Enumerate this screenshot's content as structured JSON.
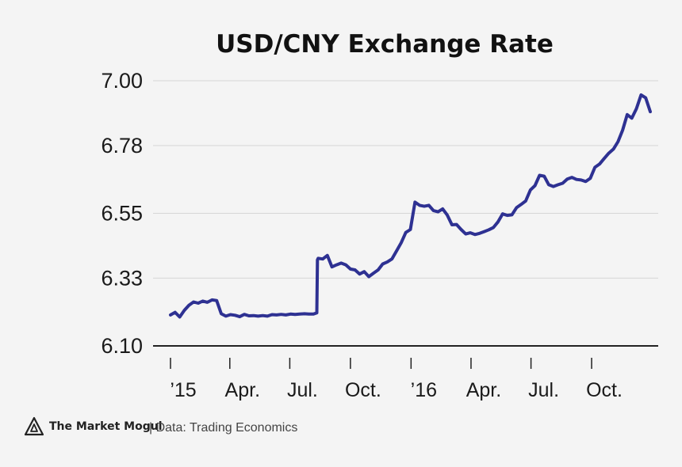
{
  "chart_data": {
    "type": "line",
    "title": "USD/CNY Exchange Rate",
    "xlabel": "",
    "ylabel": "",
    "ylim": [
      6.1,
      7.0
    ],
    "y_ticks": [
      "6.10",
      "6.33",
      "6.55",
      "6.78",
      "7.00"
    ],
    "x_ticks": [
      "’15",
      "Apr.",
      "Jul.",
      "Oct.",
      "’16",
      "Apr.",
      "Jul.",
      "Oct."
    ],
    "grid": "horizontal",
    "line_color": "#2e3192",
    "series": [
      {
        "name": "",
        "x": [
          "2015-01-01",
          "2015-01-08",
          "2015-01-15",
          "2015-01-22",
          "2015-01-29",
          "2015-02-05",
          "2015-02-12",
          "2015-02-19",
          "2015-02-26",
          "2015-03-05",
          "2015-03-12",
          "2015-03-19",
          "2015-03-26",
          "2015-04-02",
          "2015-04-09",
          "2015-04-16",
          "2015-04-23",
          "2015-04-30",
          "2015-05-07",
          "2015-05-14",
          "2015-05-21",
          "2015-05-28",
          "2015-06-04",
          "2015-06-11",
          "2015-06-18",
          "2015-06-25",
          "2015-07-02",
          "2015-07-09",
          "2015-07-16",
          "2015-07-23",
          "2015-07-30",
          "2015-08-06",
          "2015-08-11",
          "2015-08-12",
          "2015-08-13",
          "2015-08-20",
          "2015-08-27",
          "2015-09-03",
          "2015-09-10",
          "2015-09-17",
          "2015-09-24",
          "2015-10-01",
          "2015-10-08",
          "2015-10-15",
          "2015-10-22",
          "2015-10-29",
          "2015-11-05",
          "2015-11-12",
          "2015-11-19",
          "2015-11-26",
          "2015-12-03",
          "2015-12-10",
          "2015-12-17",
          "2015-12-24",
          "2015-12-31",
          "2016-01-07",
          "2016-01-14",
          "2016-01-21",
          "2016-01-28",
          "2016-02-04",
          "2016-02-11",
          "2016-02-18",
          "2016-02-25",
          "2016-03-03",
          "2016-03-10",
          "2016-03-17",
          "2016-03-24",
          "2016-03-31",
          "2016-04-07",
          "2016-04-14",
          "2016-04-21",
          "2016-04-28",
          "2016-05-05",
          "2016-05-12",
          "2016-05-19",
          "2016-05-26",
          "2016-06-02",
          "2016-06-09",
          "2016-06-16",
          "2016-06-23",
          "2016-06-30",
          "2016-07-07",
          "2016-07-14",
          "2016-07-21",
          "2016-07-28",
          "2016-08-04",
          "2016-08-11",
          "2016-08-18",
          "2016-08-25",
          "2016-09-01",
          "2016-09-08",
          "2016-09-15",
          "2016-09-22",
          "2016-09-29",
          "2016-10-06",
          "2016-10-13",
          "2016-10-20",
          "2016-10-27",
          "2016-11-03",
          "2016-11-10",
          "2016-11-17",
          "2016-11-24",
          "2016-12-01",
          "2016-12-08",
          "2016-12-15",
          "2016-12-22",
          "2016-12-29"
        ],
        "values": [
          6.205,
          6.214,
          6.198,
          6.221,
          6.238,
          6.249,
          6.245,
          6.252,
          6.248,
          6.256,
          6.254,
          6.209,
          6.201,
          6.206,
          6.204,
          6.199,
          6.207,
          6.202,
          6.203,
          6.201,
          6.203,
          6.201,
          6.206,
          6.205,
          6.207,
          6.205,
          6.208,
          6.207,
          6.208,
          6.209,
          6.208,
          6.208,
          6.212,
          6.392,
          6.397,
          6.395,
          6.407,
          6.368,
          6.375,
          6.381,
          6.375,
          6.361,
          6.358,
          6.344,
          6.352,
          6.335,
          6.347,
          6.358,
          6.378,
          6.385,
          6.395,
          6.422,
          6.45,
          6.485,
          6.495,
          6.588,
          6.577,
          6.574,
          6.577,
          6.559,
          6.555,
          6.565,
          6.544,
          6.511,
          6.512,
          6.495,
          6.48,
          6.484,
          6.478,
          6.482,
          6.488,
          6.494,
          6.502,
          6.521,
          6.548,
          6.543,
          6.545,
          6.569,
          6.58,
          6.592,
          6.629,
          6.644,
          6.679,
          6.676,
          6.647,
          6.641,
          6.647,
          6.652,
          6.666,
          6.672,
          6.665,
          6.663,
          6.658,
          6.669,
          6.706,
          6.717,
          6.736,
          6.754,
          6.768,
          6.793,
          6.832,
          6.885,
          6.873,
          6.905,
          6.952,
          6.942,
          6.895
        ]
      }
    ]
  },
  "footer": {
    "brand": "The Market Mogul",
    "source": "| Data: Trading Economics"
  }
}
